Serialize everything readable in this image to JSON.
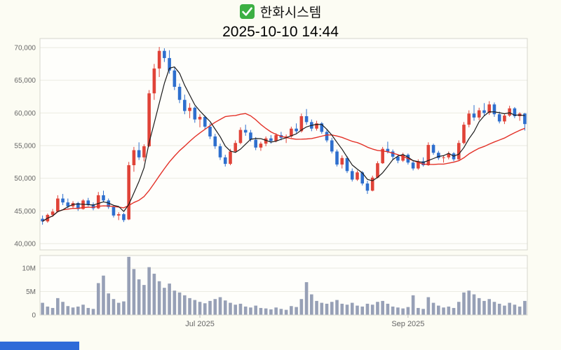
{
  "header": {
    "icon": "checkbox-checked",
    "stock_name": "한화시스템",
    "datetime": "2025-10-10 14:44"
  },
  "colors": {
    "up": "#e04338",
    "down": "#2e6fce",
    "ma_fast": "#1b1b1b",
    "ma_slow": "#e33127",
    "volume": "#97a0b6",
    "grid": "#ebebe2",
    "border": "#d6d6cd",
    "axis_text": "#666666",
    "plot_bg": "#fefefb",
    "check_green": "#3cb043",
    "bottom_strip": "#2f6bd8"
  },
  "chart_data": {
    "type": "candlestick+volume",
    "title": "한화시스템",
    "subtitle": "2025-10-10 14:44",
    "grid": true,
    "legend": "none",
    "price_axis": {
      "min": 40000,
      "max": 70000,
      "tick_values": [
        40000,
        45000,
        50000,
        55000,
        60000,
        65000,
        70000
      ],
      "tick_labels": [
        "40,000",
        "45,000",
        "50,000",
        "55,000",
        "60,000",
        "65,000",
        "70,000"
      ]
    },
    "volume_axis": {
      "unit": "M",
      "tick_values_m": [
        0,
        5,
        10
      ],
      "tick_labels": [
        "0",
        "5M",
        "10M"
      ]
    },
    "x_axis": {
      "labels": [
        {
          "text": "Jul 2025",
          "index": 31
        },
        {
          "text": "Sep 2025",
          "index": 72
        }
      ]
    },
    "series": {
      "candle_format": [
        "open",
        "high",
        "low",
        "close",
        "volume_millions"
      ],
      "candles": [
        [
          43800,
          44300,
          42900,
          43400,
          2.6
        ],
        [
          43400,
          44600,
          43200,
          44400,
          1.8
        ],
        [
          44400,
          45300,
          44100,
          44900,
          1.5
        ],
        [
          44900,
          47400,
          44800,
          46900,
          3.6
        ],
        [
          46900,
          47600,
          45900,
          46300,
          2.8
        ],
        [
          46300,
          46900,
          45400,
          45700,
          1.9
        ],
        [
          45700,
          46500,
          45300,
          46200,
          1.6
        ],
        [
          46200,
          46400,
          45000,
          45300,
          1.8
        ],
        [
          45300,
          46800,
          45200,
          46600,
          2.2
        ],
        [
          46600,
          47000,
          45700,
          46000,
          1.5
        ],
        [
          46000,
          46300,
          45100,
          45400,
          1.3
        ],
        [
          45400,
          47900,
          45300,
          47400,
          6.8
        ],
        [
          47400,
          48100,
          46300,
          46600,
          8.4
        ],
        [
          46600,
          46900,
          45300,
          45600,
          4.6
        ],
        [
          45600,
          45900,
          44000,
          44300,
          3.4
        ],
        [
          44300,
          44800,
          43600,
          44500,
          2.6
        ],
        [
          44500,
          44700,
          43300,
          43600,
          2.9
        ],
        [
          43700,
          52500,
          43600,
          52000,
          12.4
        ],
        [
          52000,
          54800,
          51000,
          54300,
          9.8
        ],
        [
          54300,
          55500,
          52800,
          53200,
          7.6
        ],
        [
          53200,
          55200,
          52600,
          54900,
          6.4
        ],
        [
          54900,
          63500,
          54800,
          63000,
          10.2
        ],
        [
          63000,
          67500,
          62000,
          66800,
          8.8
        ],
        [
          66800,
          70100,
          65500,
          69500,
          7.2
        ],
        [
          69500,
          69900,
          67800,
          68400,
          5.8
        ],
        [
          68400,
          69600,
          66000,
          66500,
          6.7
        ],
        [
          66500,
          67000,
          63500,
          64000,
          5.2
        ],
        [
          64000,
          64500,
          61500,
          62000,
          4.8
        ],
        [
          62000,
          62800,
          59800,
          60300,
          4.2
        ],
        [
          60300,
          61500,
          59200,
          60800,
          3.6
        ],
        [
          60800,
          61000,
          58500,
          59000,
          3.2
        ],
        [
          59000,
          59800,
          57800,
          59400,
          2.8
        ],
        [
          59400,
          59600,
          57500,
          57900,
          2.5
        ],
        [
          57900,
          58400,
          56000,
          56400,
          3.0
        ],
        [
          56400,
          56800,
          54500,
          54900,
          3.4
        ],
        [
          54900,
          55300,
          52800,
          53200,
          3.8
        ],
        [
          53200,
          53600,
          51800,
          52200,
          3.1
        ],
        [
          52200,
          54500,
          52000,
          54100,
          2.6
        ],
        [
          54100,
          55800,
          53900,
          55400,
          2.2
        ],
        [
          55400,
          57800,
          55200,
          57400,
          2.4
        ],
        [
          57400,
          58200,
          56500,
          57000,
          1.8
        ],
        [
          57000,
          57400,
          55600,
          55900,
          1.6
        ],
        [
          55900,
          56300,
          54300,
          54700,
          2.0
        ],
        [
          54700,
          55600,
          54200,
          55300,
          1.5
        ],
        [
          55300,
          56400,
          54900,
          56100,
          1.4
        ],
        [
          56100,
          56600,
          55300,
          55700,
          1.2
        ],
        [
          55700,
          56900,
          55500,
          56600,
          1.6
        ],
        [
          56600,
          57100,
          55800,
          56200,
          1.3
        ],
        [
          56200,
          56700,
          55400,
          56400,
          1.1
        ],
        [
          56400,
          57900,
          56200,
          57600,
          1.9
        ],
        [
          57600,
          58400,
          56900,
          57200,
          1.7
        ],
        [
          57200,
          59900,
          57000,
          59500,
          3.4
        ],
        [
          59500,
          60600,
          58200,
          58600,
          7.0
        ],
        [
          58600,
          59000,
          57200,
          57600,
          4.4
        ],
        [
          57600,
          58800,
          57300,
          58400,
          3.0
        ],
        [
          58400,
          58600,
          56800,
          57100,
          2.6
        ],
        [
          57100,
          57500,
          55500,
          55800,
          2.4
        ],
        [
          55800,
          56200,
          53800,
          54100,
          2.8
        ],
        [
          54100,
          54400,
          51800,
          52100,
          3.2
        ],
        [
          52100,
          53500,
          51500,
          53100,
          2.4
        ],
        [
          53100,
          53400,
          50800,
          51100,
          2.2
        ],
        [
          51100,
          51500,
          49500,
          49800,
          2.6
        ],
        [
          49800,
          51200,
          49600,
          50900,
          2.0
        ],
        [
          50900,
          51100,
          48900,
          49200,
          1.8
        ],
        [
          49200,
          49600,
          47600,
          48100,
          2.4
        ],
        [
          48100,
          50400,
          48000,
          50100,
          2.2
        ],
        [
          50100,
          52600,
          50000,
          52300,
          2.8
        ],
        [
          52300,
          54800,
          52200,
          54500,
          3.0
        ],
        [
          54500,
          55600,
          53800,
          54100,
          2.4
        ],
        [
          54100,
          54400,
          52900,
          53300,
          1.8
        ],
        [
          53300,
          53700,
          52300,
          52700,
          1.6
        ],
        [
          52700,
          53900,
          52500,
          53600,
          1.4
        ],
        [
          53600,
          53800,
          52100,
          52400,
          1.7
        ],
        [
          52400,
          52800,
          51200,
          51500,
          4.2
        ],
        [
          51500,
          52900,
          51300,
          52600,
          1.5
        ],
        [
          52600,
          53200,
          51800,
          52000,
          1.3
        ],
        [
          52000,
          55500,
          51900,
          55100,
          3.8
        ],
        [
          55100,
          55300,
          53600,
          53900,
          2.6
        ],
        [
          53900,
          54200,
          52800,
          53100,
          2.0
        ],
        [
          53100,
          53500,
          52400,
          53200,
          1.6
        ],
        [
          53200,
          54100,
          52900,
          53800,
          1.8
        ],
        [
          53800,
          54000,
          52600,
          52900,
          1.5
        ],
        [
          52900,
          55800,
          52800,
          55400,
          2.8
        ],
        [
          55400,
          58600,
          55200,
          58200,
          4.8
        ],
        [
          58200,
          60400,
          57800,
          59900,
          5.2
        ],
        [
          59900,
          61200,
          58800,
          59300,
          4.4
        ],
        [
          59300,
          60800,
          58900,
          60400,
          3.6
        ],
        [
          60400,
          61500,
          59600,
          60000,
          3.0
        ],
        [
          60000,
          61800,
          59700,
          61300,
          3.4
        ],
        [
          61300,
          61600,
          59400,
          59800,
          2.8
        ],
        [
          59800,
          60200,
          58400,
          58700,
          2.4
        ],
        [
          58700,
          59900,
          58300,
          59600,
          2.0
        ],
        [
          59600,
          61100,
          59400,
          60700,
          2.6
        ],
        [
          60700,
          60900,
          59200,
          59500,
          2.2
        ],
        [
          59500,
          60100,
          58800,
          59900,
          1.8
        ],
        [
          59900,
          60000,
          57300,
          58300,
          3.0
        ]
      ],
      "overlays": [
        {
          "name": "ma-slow",
          "window": 20,
          "color": "#e33127",
          "width": 1.4
        },
        {
          "name": "ma-fast",
          "window": 5,
          "color": "#1b1b1b",
          "width": 1.2
        }
      ]
    }
  }
}
